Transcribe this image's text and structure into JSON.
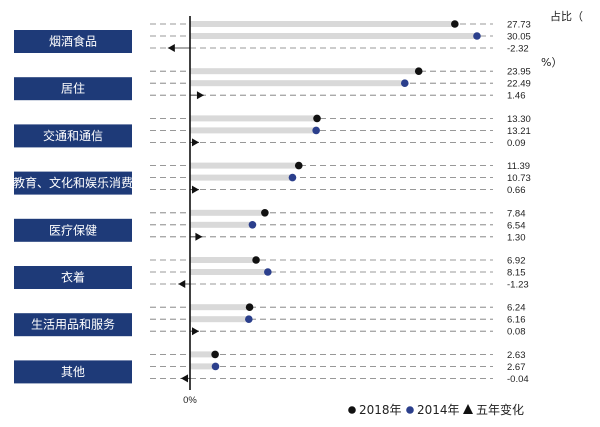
{
  "chart_data": {
    "type": "dot-plot",
    "axis_unit": [
      "占比（",
      "%）"
    ],
    "zero_label": "0%",
    "categories": [
      "烟酒食品",
      "居住",
      "交通和通信",
      "教育、文化和娱乐消费",
      "医疗保健",
      "衣着",
      "生活用品和服务",
      "其他"
    ],
    "series": [
      {
        "name": "2018年",
        "marker": "circle",
        "values": [
          27.73,
          23.95,
          13.3,
          11.39,
          7.84,
          6.92,
          6.24,
          2.63
        ]
      },
      {
        "name": "2014年",
        "marker": "circle",
        "values": [
          30.05,
          22.49,
          13.21,
          10.73,
          6.54,
          8.15,
          6.16,
          2.67
        ]
      },
      {
        "name": "五年变化",
        "marker": "triangle",
        "values": [
          -2.32,
          1.46,
          0.09,
          0.66,
          1.3,
          -1.23,
          0.08,
          -0.04
        ]
      }
    ],
    "value_labels": [
      [
        "27.73",
        "30.05",
        "-2.32"
      ],
      [
        "23.95",
        "22.49",
        "1.46"
      ],
      [
        "13.30",
        "13.21",
        "0.09"
      ],
      [
        "11.39",
        "10.73",
        "0.66"
      ],
      [
        "7.84",
        "6.54",
        "1.30"
      ],
      [
        "6.92",
        "8.15",
        "-1.23"
      ],
      [
        "6.24",
        "6.16",
        "0.08"
      ],
      [
        "2.63",
        "2.67",
        "-0.04"
      ]
    ],
    "legend": {
      "position": "bottom-right",
      "items": [
        "2018年",
        "2014年",
        "五年变化"
      ]
    },
    "colors": {
      "label_box": "#1e3a78",
      "s2018": "#111111",
      "s2014": "#2b3f8c",
      "change": "#111111",
      "bar": "#d9d9d9",
      "dashed": "#777777"
    }
  }
}
